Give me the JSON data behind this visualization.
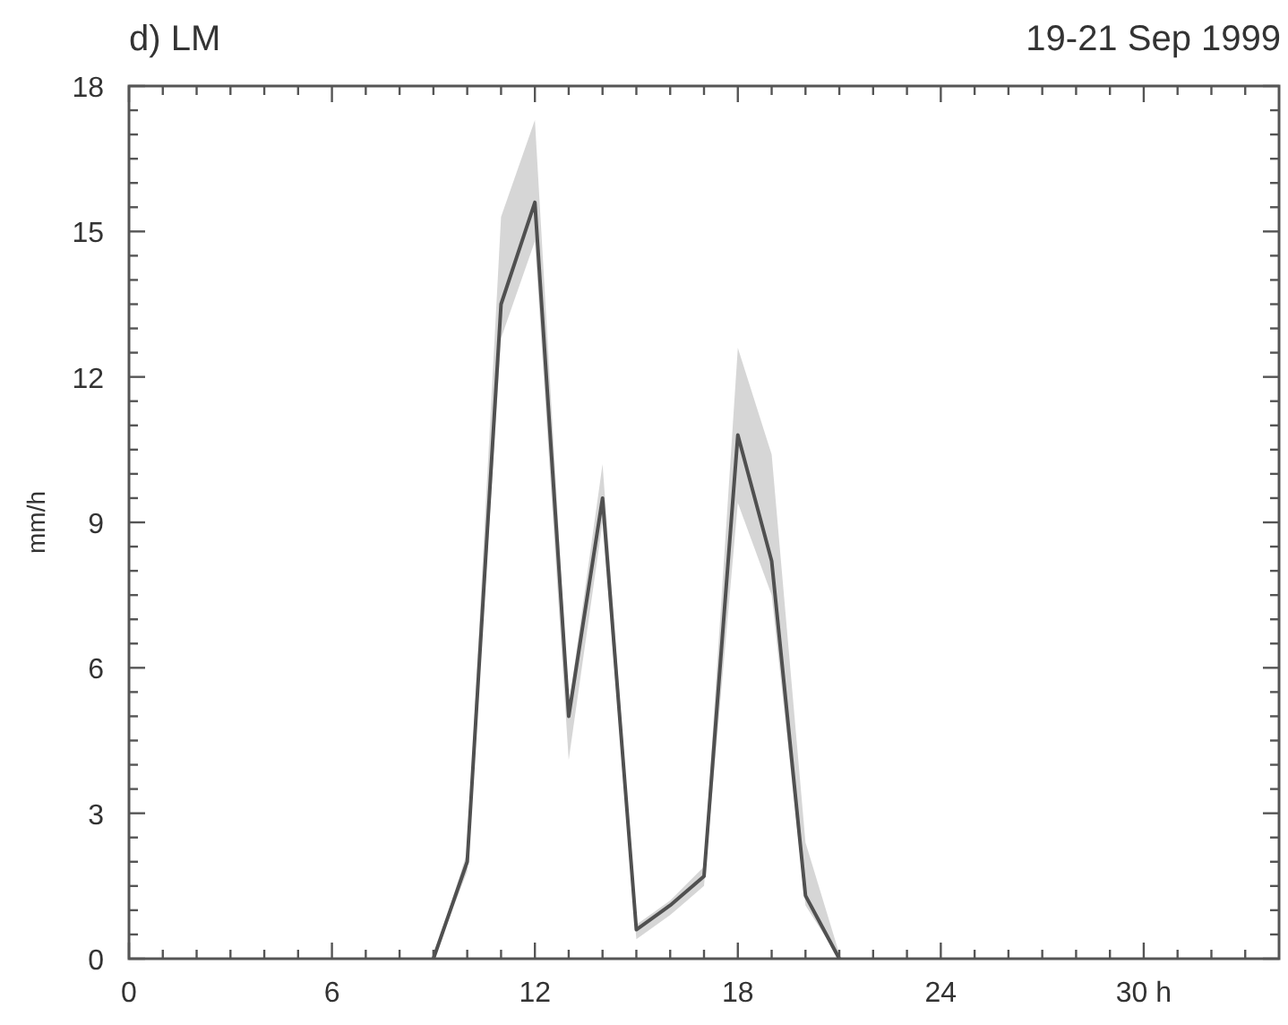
{
  "chart_data": {
    "type": "line",
    "title": "d)  LM",
    "subtitle": "19-21 Sep 1999",
    "ylabel": "mm/h",
    "x": [
      9,
      10,
      11,
      12,
      13,
      14,
      15,
      16,
      17,
      18,
      19,
      20,
      21
    ],
    "series": [
      {
        "color": "#505050",
        "values": [
          0,
          2.0,
          13.5,
          15.6,
          5.0,
          9.5,
          0.6,
          1.1,
          1.7,
          10.8,
          8.2,
          1.3,
          0
        ],
        "lower": [
          0,
          1.8,
          12.8,
          14.8,
          4.1,
          9.0,
          0.4,
          0.9,
          1.5,
          9.4,
          7.5,
          1.1,
          0
        ],
        "upper": [
          0,
          2.2,
          15.3,
          17.3,
          5.2,
          10.2,
          0.7,
          1.2,
          1.9,
          12.6,
          10.4,
          2.4,
          0.1
        ]
      }
    ],
    "xlim": [
      0,
      34
    ],
    "xticks": [
      0,
      {
        "value": 1,
        "label": null
      },
      {
        "value": 2,
        "label": null
      },
      {
        "value": 3,
        "label": null
      },
      {
        "value": 4,
        "label": null
      },
      {
        "value": 5,
        "label": null
      },
      6,
      {
        "value": 7,
        "label": null
      },
      {
        "value": 8,
        "label": null
      },
      {
        "value": 9,
        "label": null
      },
      {
        "value": 10,
        "label": null
      },
      {
        "value": 11,
        "label": null
      },
      12,
      {
        "value": 13,
        "label": null
      },
      {
        "value": 14,
        "label": null
      },
      {
        "value": 15,
        "label": null
      },
      {
        "value": 16,
        "label": null
      },
      {
        "value": 17,
        "label": null
      },
      18,
      {
        "value": 19,
        "label": null
      },
      {
        "value": 20,
        "label": null
      },
      {
        "value": 21,
        "label": null
      },
      {
        "value": 22,
        "label": null
      },
      {
        "value": 23,
        "label": null
      },
      24,
      {
        "value": 25,
        "label": null
      },
      {
        "value": 26,
        "label": null
      },
      {
        "value": 27,
        "label": null
      },
      {
        "value": 28,
        "label": null
      },
      {
        "value": 29,
        "label": null
      },
      {
        "value": 30,
        "label": "30 h"
      },
      {
        "value": 31,
        "label": null
      },
      {
        "value": 32,
        "label": null
      },
      {
        "value": 33,
        "label": null
      }
    ],
    "ylim": [
      0,
      18
    ],
    "yticks": [
      0,
      {
        "value": 0.5,
        "label": null
      },
      {
        "value": 1,
        "label": null
      },
      {
        "value": 1.5,
        "label": null
      },
      {
        "value": 2,
        "label": null
      },
      {
        "value": 2.5,
        "label": null
      },
      3,
      {
        "value": 3.5,
        "label": null
      },
      {
        "value": 4,
        "label": null
      },
      {
        "value": 4.5,
        "label": null
      },
      {
        "value": 5,
        "label": null
      },
      {
        "value": 5.5,
        "label": null
      },
      6,
      {
        "value": 6.5,
        "label": null
      },
      {
        "value": 7,
        "label": null
      },
      {
        "value": 7.5,
        "label": null
      },
      {
        "value": 8,
        "label": null
      },
      {
        "value": 8.5,
        "label": null
      },
      9,
      {
        "value": 9.5,
        "label": null
      },
      {
        "value": 10,
        "label": null
      },
      {
        "value": 10.5,
        "label": null
      },
      {
        "value": 11,
        "label": null
      },
      {
        "value": 11.5,
        "label": null
      },
      12,
      {
        "value": 12.5,
        "label": null
      },
      {
        "value": 13,
        "label": null
      },
      {
        "value": 13.5,
        "label": null
      },
      {
        "value": 14,
        "label": null
      },
      {
        "value": 14.5,
        "label": null
      },
      15,
      {
        "value": 15.5,
        "label": null
      },
      {
        "value": 16,
        "label": null
      },
      {
        "value": 16.5,
        "label": null
      },
      {
        "value": 17,
        "label": null
      },
      {
        "value": 17.5,
        "label": null
      },
      18
    ],
    "grid": false,
    "marker": "none",
    "line_style": "solid"
  }
}
